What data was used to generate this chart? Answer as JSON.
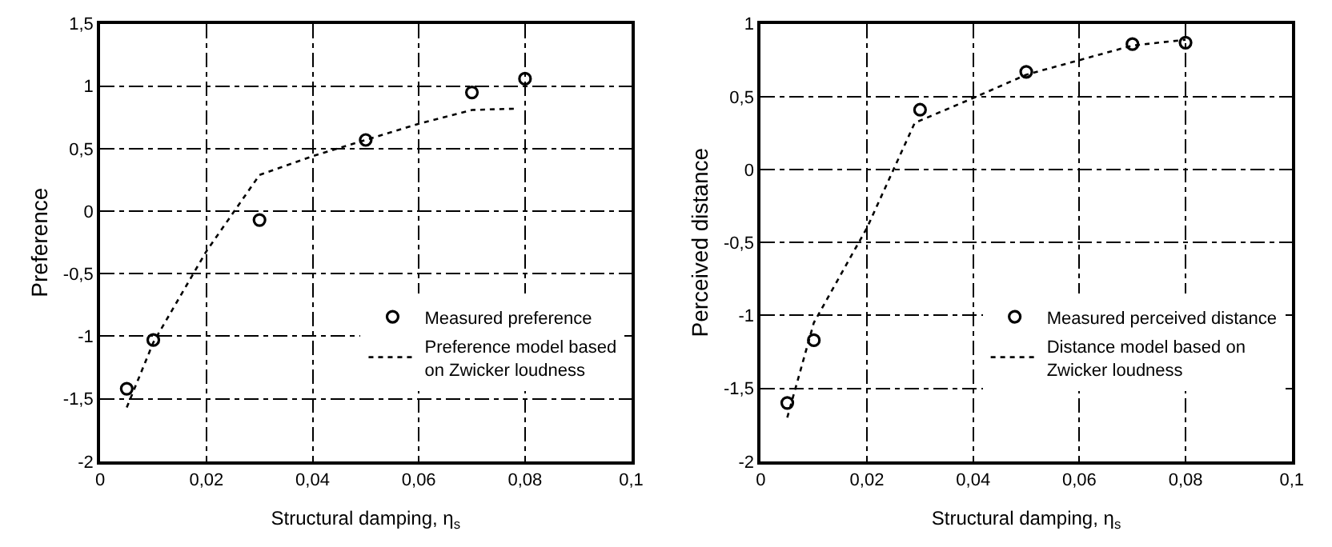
{
  "chart_data": [
    {
      "type": "scatter",
      "xlabel": "Structural damping, η$_{s}$",
      "ylabel": "Preference",
      "xlim": [
        0,
        0.1
      ],
      "ylim": [
        -2,
        1.5
      ],
      "xticks": [
        0,
        {
          "value": 0.02,
          "label": "0,02"
        },
        {
          "value": 0.04,
          "label": "0,04"
        },
        {
          "value": 0.06,
          "label": "0,06"
        },
        {
          "value": 0.08,
          "label": "0,08"
        },
        {
          "value": 0.1,
          "label": "0,1"
        }
      ],
      "yticks": [
        -2,
        {
          "value": -1.5,
          "label": "-1,5"
        },
        -1,
        {
          "value": -0.5,
          "label": "-0,5"
        },
        0,
        {
          "value": 0.5,
          "label": "0,5"
        },
        1,
        {
          "value": 1.5,
          "label": "1,5"
        }
      ],
      "grid": true,
      "legend": "bottom right",
      "series": [
        {
          "name": "Measured preference",
          "marker": "circle",
          "color": "#000000",
          "x": [
            0.005,
            0.01,
            0.03,
            0.05,
            0.07,
            0.08
          ],
          "values": [
            -1.42,
            -1.03,
            -0.07,
            0.57,
            0.95,
            1.06
          ]
        },
        {
          "name": "Preference model based\non Zwicker loudness",
          "type": "line",
          "line_style": "dotted",
          "color": "#000000",
          "x": [
            0.005,
            0.01,
            0.02,
            0.03,
            0.04,
            0.05,
            0.06,
            0.07,
            0.078
          ],
          "values": [
            -1.57,
            -1.05,
            -0.32,
            0.29,
            0.44,
            0.57,
            0.7,
            0.81,
            0.82
          ]
        }
      ]
    },
    {
      "type": "scatter",
      "xlabel": "Structural damping, η$_{s}$",
      "ylabel": "Perceived distance",
      "xlim": [
        0,
        0.1
      ],
      "ylim": [
        -2,
        1
      ],
      "xticks": [
        0,
        {
          "value": 0.02,
          "label": "0,02"
        },
        {
          "value": 0.04,
          "label": "0,04"
        },
        {
          "value": 0.06,
          "label": "0,06"
        },
        {
          "value": 0.08,
          "label": "0,08"
        },
        {
          "value": 0.1,
          "label": "0,1"
        }
      ],
      "yticks": [
        -2,
        {
          "value": -1.5,
          "label": "-1,5"
        },
        -1,
        {
          "value": -0.5,
          "label": "-0,5"
        },
        0,
        {
          "value": 0.5,
          "label": "0,5"
        },
        1
      ],
      "grid": true,
      "legend": "bottom right",
      "series": [
        {
          "name": "Measured perceived distance",
          "marker": "circle",
          "color": "#000000",
          "x": [
            0.005,
            0.01,
            0.03,
            0.05,
            0.07,
            0.08
          ],
          "values": [
            -1.6,
            -1.17,
            0.41,
            0.67,
            0.86,
            0.87
          ]
        },
        {
          "name": "Distance model based on\nZwicker loudness",
          "type": "line",
          "line_style": "dotted",
          "color": "#000000",
          "x": [
            0.005,
            0.01,
            0.02,
            0.029,
            0.04,
            0.05,
            0.06,
            0.07,
            0.08
          ],
          "values": [
            -1.7,
            -1.05,
            -0.4,
            0.32,
            0.49,
            0.65,
            0.75,
            0.85,
            0.89
          ]
        }
      ]
    }
  ]
}
